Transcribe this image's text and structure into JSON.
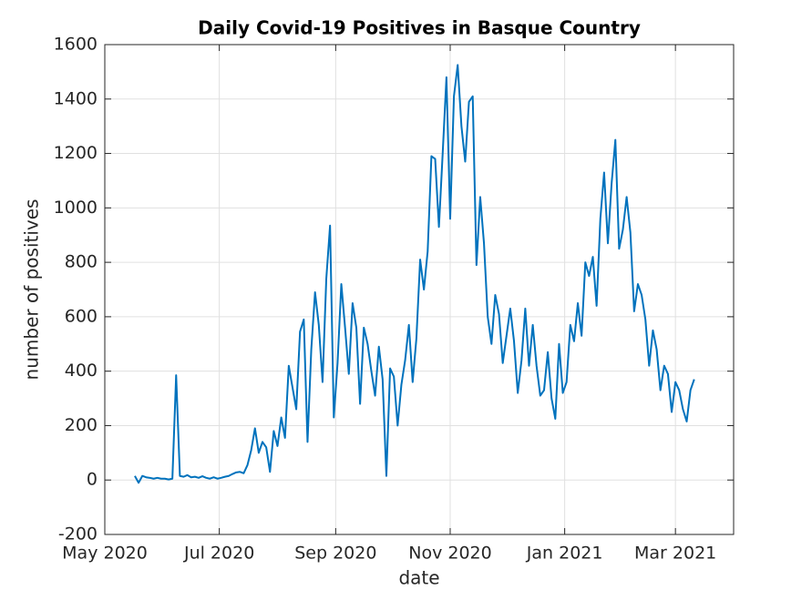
{
  "chart_data": {
    "type": "line",
    "title": "Daily Covid-19 Positives in Basque Country",
    "xlabel": "date",
    "ylabel": "number of positives",
    "x": [
      16,
      18,
      20,
      22,
      24,
      26,
      28,
      30,
      32,
      34,
      36,
      38,
      40,
      42,
      44,
      46,
      48,
      50,
      52,
      54,
      56,
      58,
      60,
      62,
      64,
      66,
      68,
      70,
      72,
      74,
      76,
      78,
      80,
      82,
      84,
      86,
      88,
      90,
      92,
      94,
      96,
      98,
      100,
      102,
      104,
      106,
      108,
      110,
      112,
      114,
      116,
      118,
      120,
      122,
      124,
      126,
      128,
      130,
      132,
      134,
      136,
      138,
      140,
      142,
      144,
      146,
      148,
      150,
      152,
      154,
      156,
      158,
      160,
      162,
      164,
      166,
      168,
      170,
      172,
      174,
      176,
      178,
      180,
      182,
      184,
      186,
      188,
      190,
      192,
      194,
      196,
      198,
      200,
      202,
      204,
      206,
      208,
      210,
      212,
      214,
      216,
      218,
      220,
      222,
      224,
      226,
      228,
      230,
      232,
      234,
      236,
      238,
      240,
      242,
      244,
      246,
      248,
      250,
      252,
      254,
      256,
      258,
      260,
      262,
      264,
      266,
      268,
      270,
      272,
      274,
      276,
      278,
      280,
      282,
      284,
      286,
      288,
      290,
      292,
      294,
      296,
      298,
      300,
      302,
      304,
      306,
      308,
      310,
      312,
      314
    ],
    "series": [
      {
        "name": "positives",
        "color": "#0072bd",
        "values": [
          15,
          -10,
          15,
          10,
          8,
          5,
          8,
          5,
          5,
          2,
          5,
          385,
          15,
          12,
          18,
          10,
          12,
          8,
          14,
          8,
          5,
          10,
          5,
          8,
          12,
          15,
          22,
          28,
          30,
          25,
          55,
          110,
          190,
          100,
          140,
          120,
          30,
          180,
          125,
          230,
          155,
          420,
          340,
          260,
          545,
          590,
          140,
          480,
          690,
          570,
          360,
          740,
          935,
          230,
          430,
          720,
          560,
          390,
          650,
          560,
          280,
          560,
          500,
          400,
          310,
          490,
          370,
          15,
          410,
          380,
          200,
          350,
          440,
          570,
          360,
          520,
          810,
          700,
          840,
          1190,
          1180,
          930,
          1200,
          1480,
          960,
          1410,
          1525,
          1300,
          1170,
          1390,
          1410,
          790,
          1040,
          870,
          600,
          500,
          680,
          610,
          430,
          530,
          630,
          510,
          320,
          440,
          630,
          420,
          570,
          420,
          310,
          330,
          470,
          300,
          225,
          500,
          320,
          360,
          570,
          510,
          650,
          530,
          800,
          750,
          820,
          640,
          960,
          1130,
          870,
          1090,
          1250,
          850,
          920,
          1040,
          910,
          620,
          720,
          680,
          590,
          420,
          550,
          480,
          330,
          420,
          390,
          250,
          360,
          330,
          260,
          215,
          330,
          370
        ]
      }
    ],
    "xlim": [
      0,
      335
    ],
    "xticks": [
      {
        "value": 0,
        "label": "May 2020"
      },
      {
        "value": 61,
        "label": "Jul 2020"
      },
      {
        "value": 123,
        "label": "Sep 2020"
      },
      {
        "value": 184,
        "label": "Nov 2020"
      },
      {
        "value": 245,
        "label": "Jan 2021"
      },
      {
        "value": 304,
        "label": "Mar 2021"
      }
    ],
    "ylim": [
      -200,
      1600
    ],
    "yticks": [
      -200,
      0,
      200,
      400,
      600,
      800,
      1000,
      1200,
      1400,
      1600
    ],
    "grid": true
  }
}
